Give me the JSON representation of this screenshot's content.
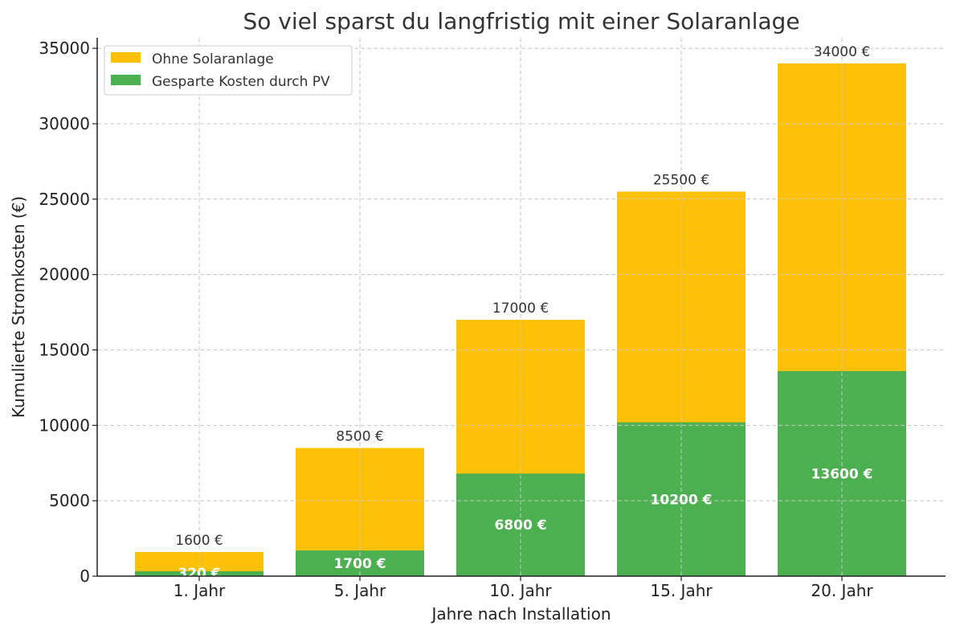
{
  "chart_data": {
    "type": "bar",
    "title": "So viel sparst du langfristig mit einer Solaranlage",
    "xlabel": "Jahre nach Installation",
    "ylabel": "Kumulierte Stromkosten (€)",
    "categories": [
      "1. Jahr",
      "5. Jahr",
      "10. Jahr",
      "15. Jahr",
      "20. Jahr"
    ],
    "series": [
      {
        "name": "Ohne Solaranlage",
        "values": [
          1600,
          8500,
          17000,
          25500,
          34000
        ],
        "color": "#FFC107",
        "labels": [
          "1600 €",
          "8500 €",
          "17000 €",
          "25500 €",
          "34000 €"
        ]
      },
      {
        "name": "Gesparte Kosten durch PV",
        "values": [
          320,
          1700,
          6800,
          10200,
          13600
        ],
        "color": "#4CAF50",
        "labels": [
          "320 €",
          "1700 €",
          "6800 €",
          "10200 €",
          "13600 €"
        ]
      }
    ],
    "yticks": [
      "0",
      "5000",
      "10000",
      "15000",
      "20000",
      "25000",
      "30000",
      "35000"
    ],
    "ylim": [
      0,
      35700
    ],
    "grid": true,
    "legend": "top-left",
    "bars_overlaid": true
  }
}
